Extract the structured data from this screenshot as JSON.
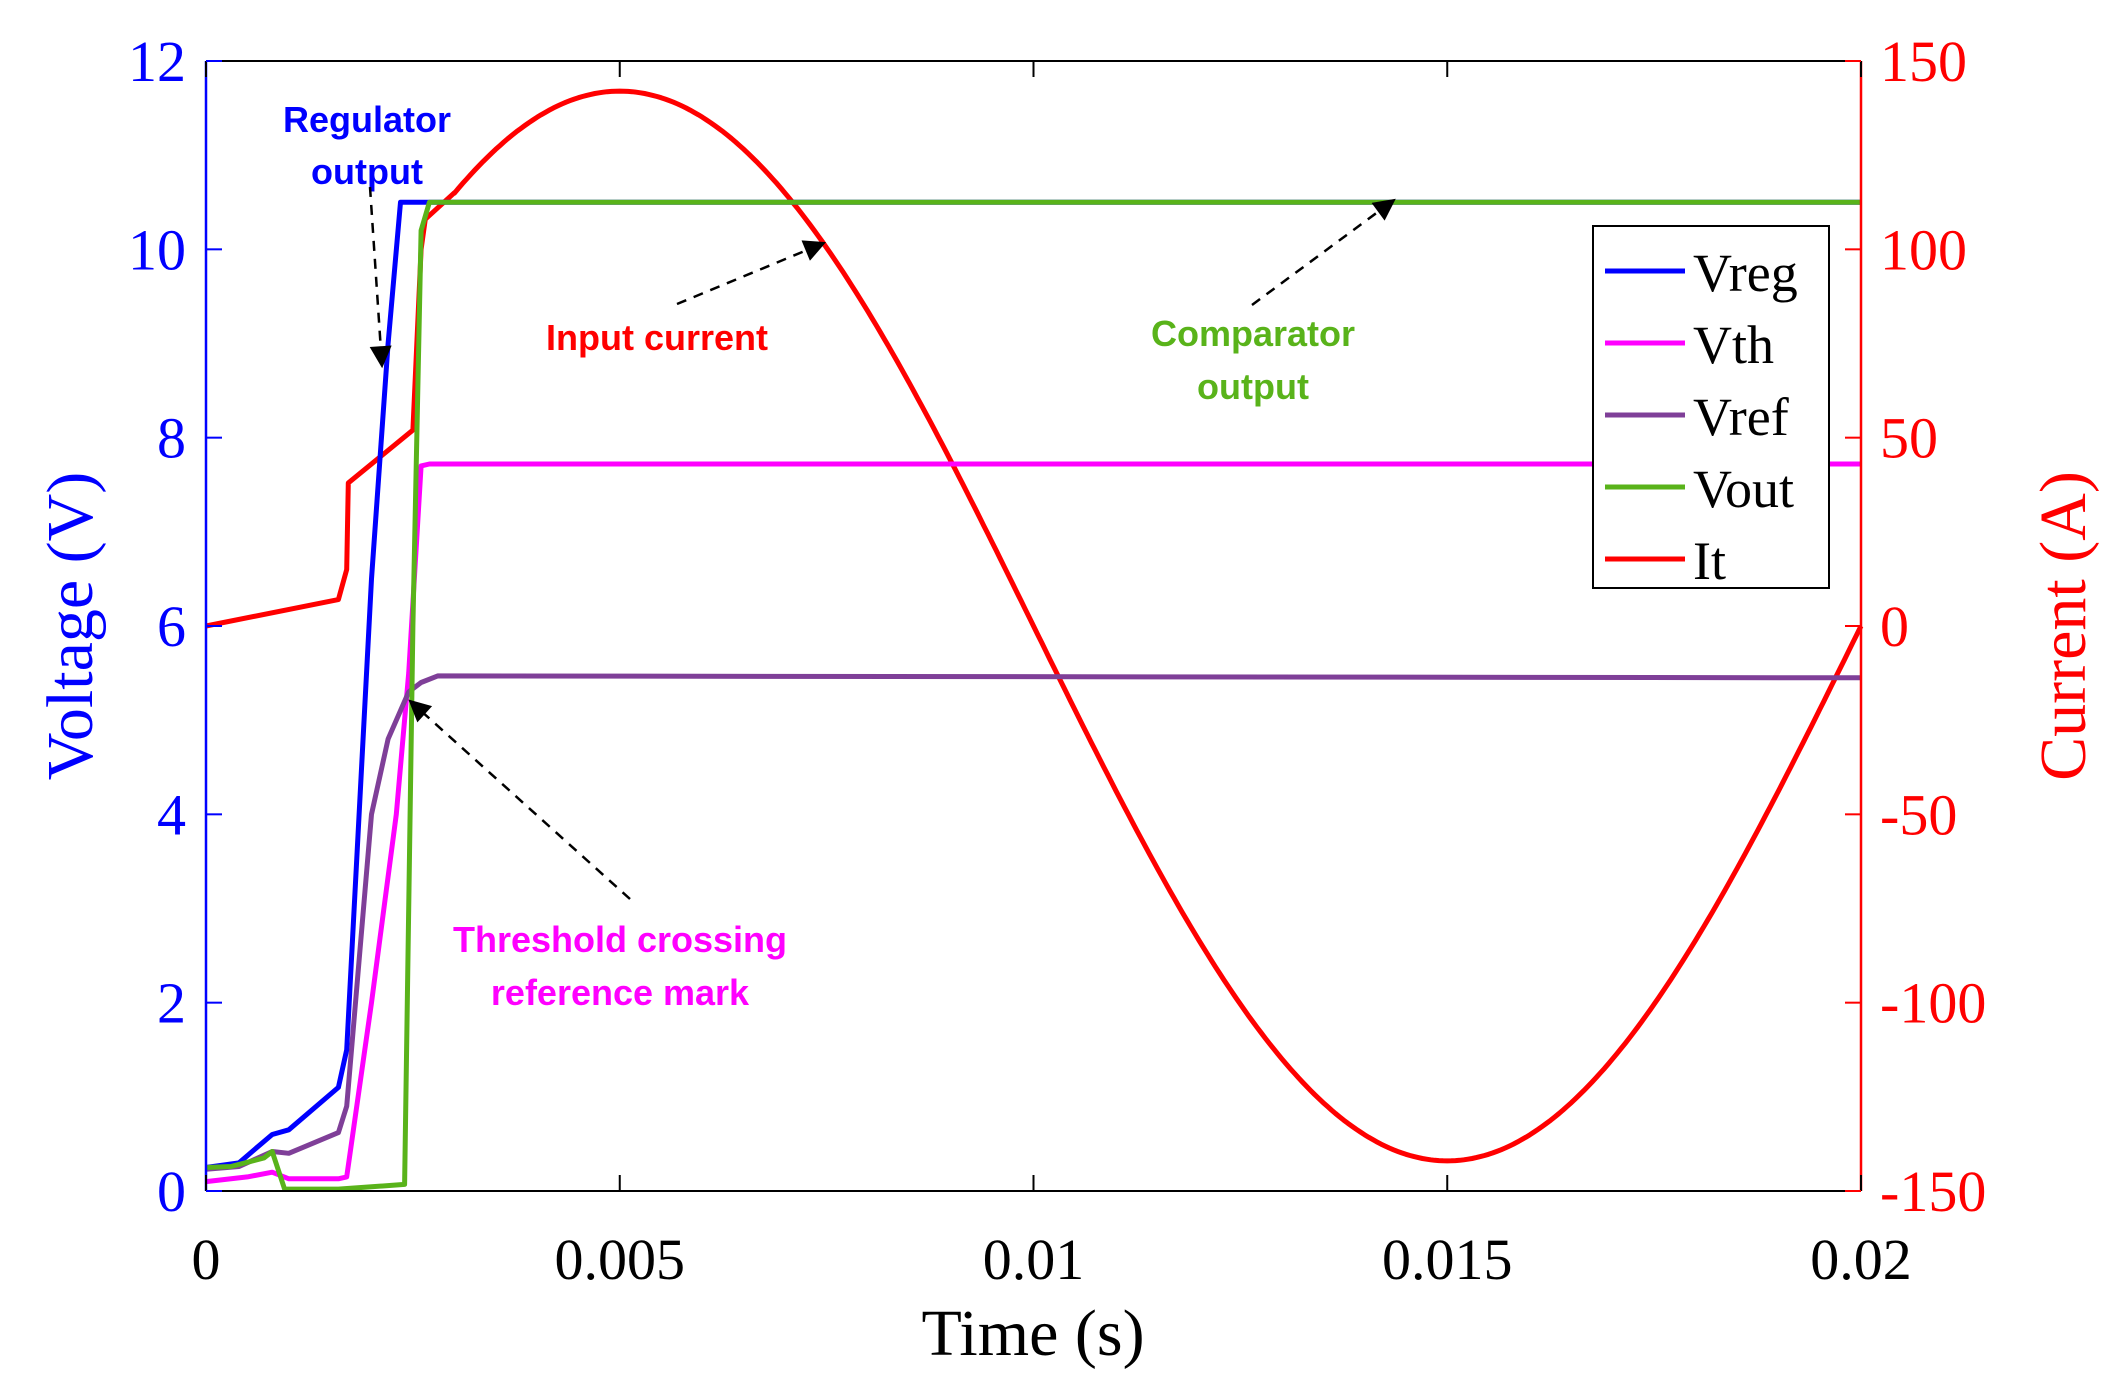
{
  "chart_data": {
    "type": "line",
    "xlabel": "Time (s)",
    "ylabel_left": "Voltage (V)",
    "ylabel_right": "Current (A)",
    "xlim": [
      0,
      0.02
    ],
    "ylim_left": [
      0,
      12
    ],
    "ylim_right": [
      -150,
      150
    ],
    "x_ticks": [
      0,
      0.005,
      0.01,
      0.015,
      0.02
    ],
    "x_tick_labels": [
      "0",
      "0.005",
      "0.01",
      "0.015",
      "0.02"
    ],
    "y_left_ticks": [
      0,
      2,
      4,
      6,
      8,
      10,
      12
    ],
    "y_left_tick_labels": [
      "0",
      "2",
      "4",
      "6",
      "8",
      "10",
      "12"
    ],
    "y_right_ticks": [
      150,
      100,
      50,
      0,
      -50,
      -100,
      -150
    ],
    "y_right_tick_labels": [
      "150",
      "100",
      "50",
      "0",
      "-50",
      "-100",
      "-150"
    ],
    "grid": false,
    "legend_position": "top-right",
    "colors": {
      "left_axis": "#0000ff",
      "right_axis": "#ff0000"
    },
    "series": [
      {
        "name": "Vreg",
        "axis": "left",
        "color": "#0000ff",
        "x": [
          0,
          0.0004,
          0.0006,
          0.0008,
          0.001,
          0.0016,
          0.0017,
          0.002,
          0.0022,
          0.00235,
          0.0024,
          0.0026,
          0.02
        ],
        "y": [
          0.25,
          0.3,
          0.45,
          0.6,
          0.65,
          1.1,
          1.5,
          6.5,
          9.0,
          10.5,
          10.5,
          10.5,
          10.5
        ]
      },
      {
        "name": "Vth",
        "axis": "left",
        "color": "#ff00ff",
        "x": [
          0,
          0.0005,
          0.0008,
          0.001,
          0.0016,
          0.0017,
          0.002,
          0.0023,
          0.00245,
          0.0026,
          0.0027,
          0.02
        ],
        "y": [
          0.1,
          0.15,
          0.2,
          0.13,
          0.13,
          0.15,
          2.0,
          4.0,
          5.5,
          7.7,
          7.72,
          7.72
        ]
      },
      {
        "name": "Vref",
        "axis": "left",
        "color": "#7f3f98",
        "x": [
          0,
          0.0004,
          0.0008,
          0.001,
          0.0016,
          0.0017,
          0.002,
          0.0022,
          0.0024,
          0.00245,
          0.0026,
          0.0028,
          0.02
        ],
        "y": [
          0.23,
          0.26,
          0.42,
          0.4,
          0.62,
          0.9,
          4.0,
          4.8,
          5.2,
          5.3,
          5.4,
          5.47,
          5.45
        ]
      },
      {
        "name": "Vout",
        "axis": "left",
        "color": "#59b31a",
        "x": [
          0,
          0.0003,
          0.0007,
          0.0008,
          0.00095,
          0.001,
          0.0016,
          0.0024,
          0.0025,
          0.0026,
          0.0027,
          0.02
        ],
        "y": [
          0.25,
          0.26,
          0.35,
          0.42,
          0.02,
          0.02,
          0.02,
          0.07,
          6.0,
          10.2,
          10.5,
          10.5
        ]
      },
      {
        "name": "It",
        "axis": "right",
        "color": "#ff0000",
        "x": [
          0,
          0.0016,
          0.0017,
          0.00172,
          0.0025,
          0.0026,
          0.00265,
          0.003,
          0.004,
          0.005,
          0.006,
          0.007,
          0.008,
          0.009,
          0.0095,
          0.01,
          0.011,
          0.012,
          0.013,
          0.014,
          0.015,
          0.016,
          0.017,
          0.018,
          0.019,
          0.02
        ],
        "y": [
          0,
          7,
          15,
          38,
          52,
          100,
          108,
          115,
          135,
          142,
          135,
          115,
          84,
          44,
          22,
          0,
          -44,
          -84,
          -115,
          -135,
          -142,
          -135,
          -115,
          -84,
          -44,
          0
        ]
      }
    ],
    "annotations": [
      {
        "text": [
          "Regulator",
          "output"
        ],
        "color": "#0000ff"
      },
      {
        "text": [
          "Input current"
        ],
        "color": "#ff0000"
      },
      {
        "text": [
          "Comparator",
          "output"
        ],
        "color": "#59b31a"
      },
      {
        "text": [
          "Threshold crossing",
          "reference mark"
        ],
        "color": "#ff00ff"
      }
    ]
  }
}
